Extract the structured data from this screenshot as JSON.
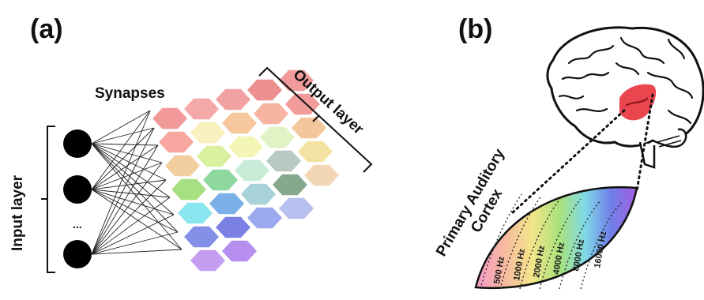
{
  "panel_a": {
    "label": "(a)",
    "input_label": "Input layer",
    "ellipsis": "...",
    "synapses_label": "Synapses",
    "output_label": "Output layer"
  },
  "panel_b": {
    "label": "(b)",
    "cortex_label_line1": "Primary Auditory",
    "cortex_label_line2": "Cortex",
    "frequencies": [
      "500 Hz",
      "1000 Hz",
      "2000 Hz",
      "4000 Hz",
      "8000 Hz",
      "16000 Hz"
    ]
  },
  "colors": {
    "input_neuron": "#000000",
    "brain_highlight": "#e8323c",
    "hex_palette": [
      "#f4a0a0",
      "#f7d9a8",
      "#a8e07a",
      "#8fe8f0",
      "#7f86e8",
      "#c79ff0"
    ]
  }
}
